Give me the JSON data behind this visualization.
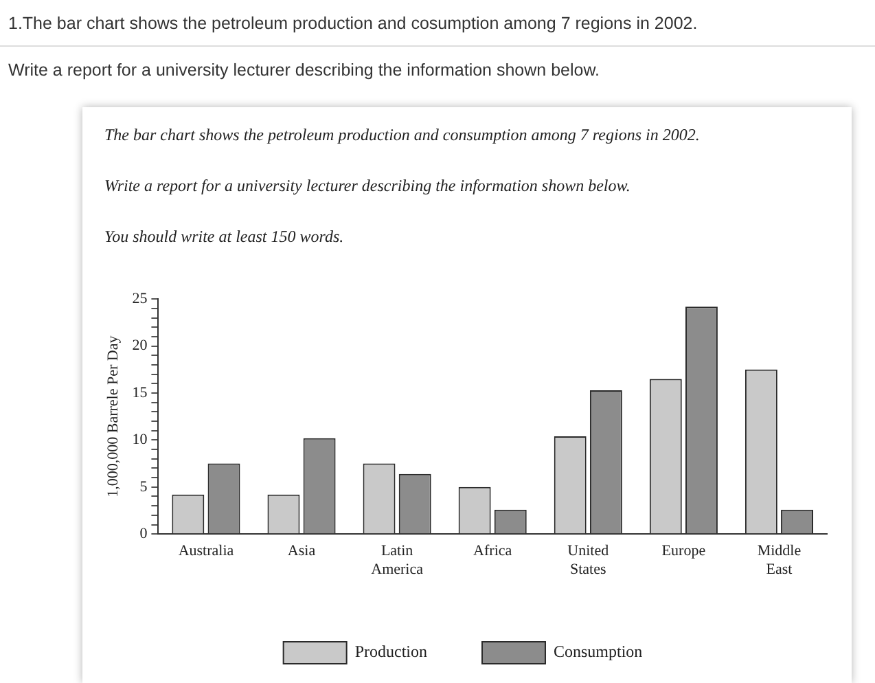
{
  "chart_data": {
    "type": "bar",
    "title": "1.The bar chart shows the petroleum production and cosumption among 7 regions in 2002.",
    "annotations": [
      "Write a report for a university lecturer describing the information shown below.",
      "The bar chart shows the petroleum production and consumption among 7 regions in 2002.",
      "Write a report for a university lecturer describing the information shown below.",
      "You should write at least 150 words."
    ],
    "ylabel": "1,000,000 Barrele Per Day",
    "categories": [
      "Australia",
      "Asia",
      "Latin America",
      "Africa",
      "United States",
      "Europe",
      "Middle East"
    ],
    "series": [
      {
        "name": "Production",
        "color": "#c9c9c9",
        "values": [
          4.2,
          4.2,
          7.5,
          5,
          10.4,
          16.5,
          17.5
        ]
      },
      {
        "name": "Consumption",
        "color": "#8c8c8c",
        "values": [
          7.5,
          10.2,
          6.4,
          2.6,
          15.3,
          24.2,
          2.6
        ]
      }
    ],
    "ylim": [
      0,
      25
    ],
    "yticks": [
      0,
      {
        "value": 1,
        "label": null
      },
      {
        "value": 2,
        "label": null
      },
      {
        "value": 3,
        "label": null
      },
      {
        "value": 4,
        "label": null
      },
      5,
      {
        "value": 6,
        "label": null
      },
      {
        "value": 7,
        "label": null
      },
      {
        "value": 8,
        "label": null
      },
      {
        "value": 9,
        "label": null
      },
      10,
      {
        "value": 11,
        "label": null
      },
      {
        "value": 12,
        "label": null
      },
      {
        "value": 13,
        "label": null
      },
      {
        "value": 14,
        "label": null
      },
      15,
      {
        "value": 16,
        "label": null
      },
      {
        "value": 17,
        "label": null
      },
      {
        "value": 18,
        "label": null
      },
      {
        "value": 19,
        "label": null
      },
      20,
      {
        "value": 21,
        "label": null
      },
      {
        "value": 22,
        "label": null
      },
      {
        "value": 23,
        "label": null
      },
      {
        "value": 24,
        "label": null
      },
      25
    ],
    "grid": false,
    "legend": "bottom"
  }
}
